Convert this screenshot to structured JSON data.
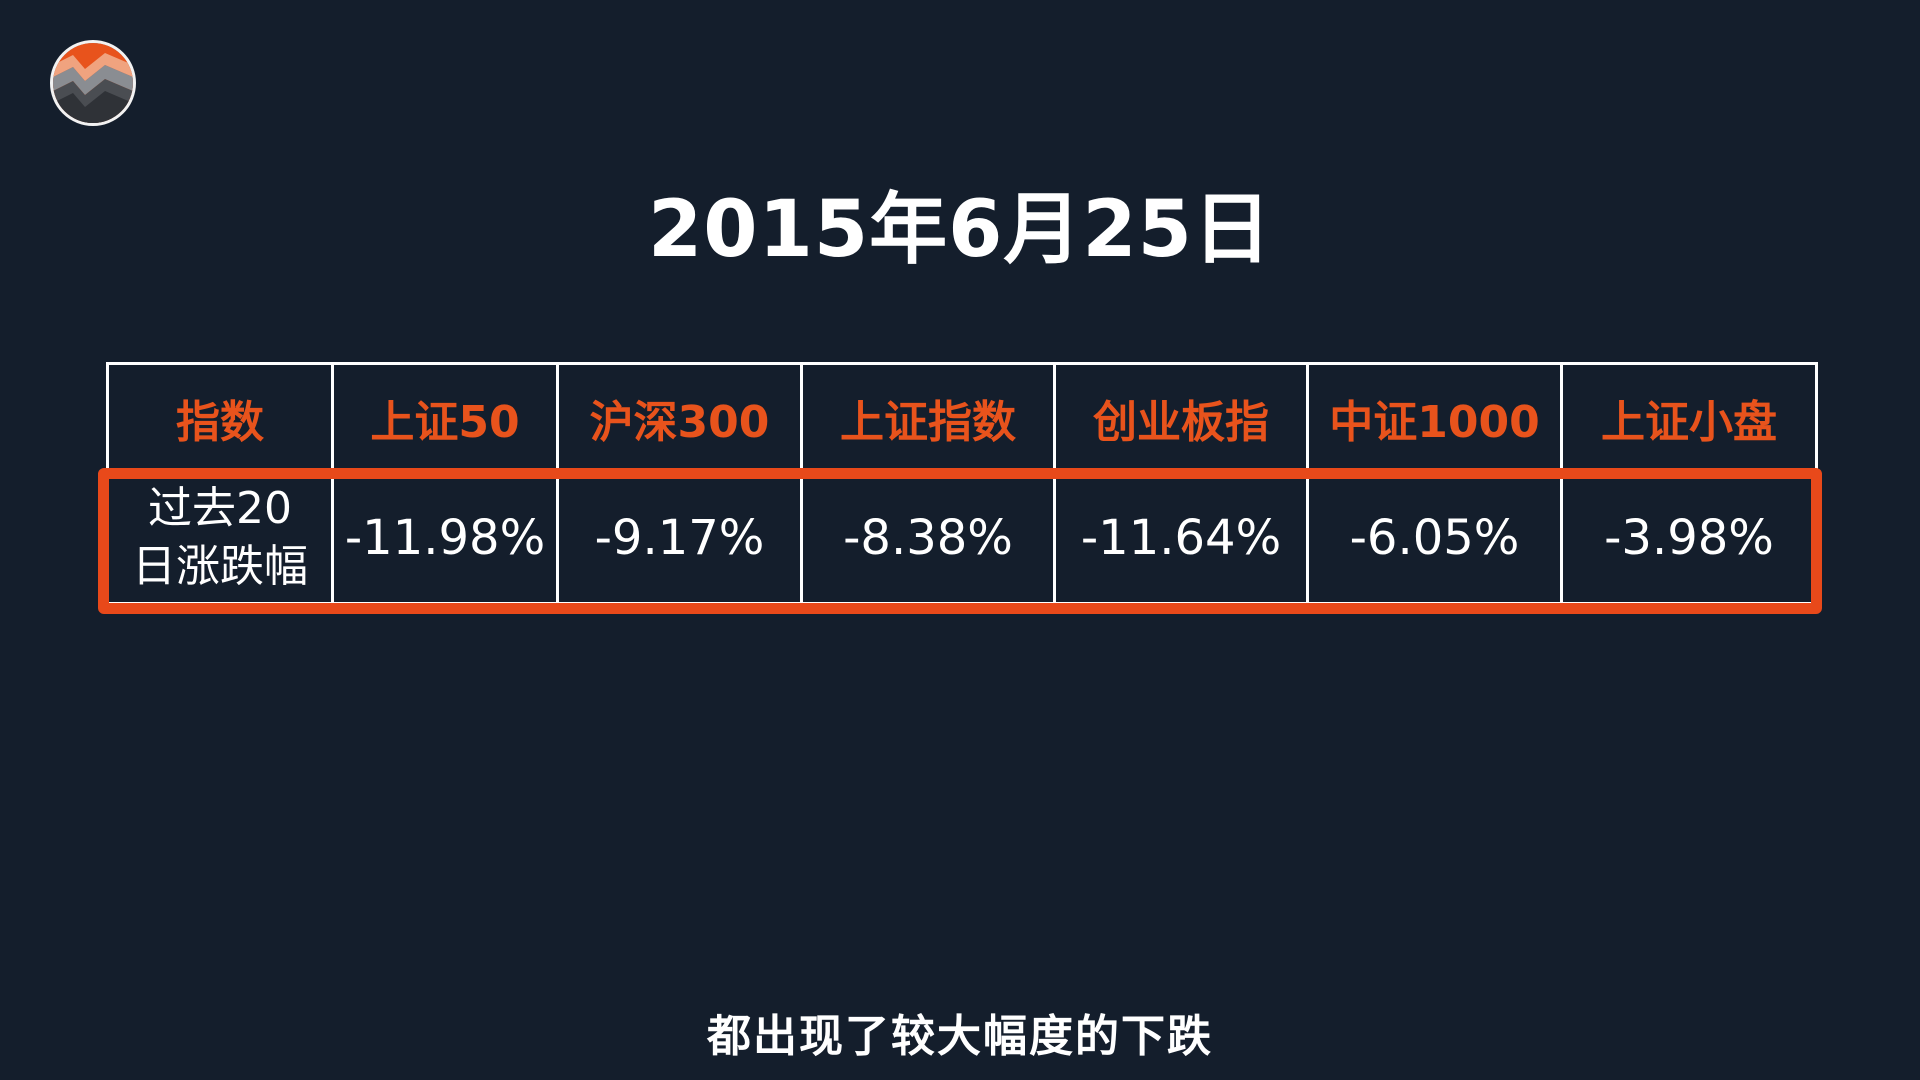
{
  "logo": {
    "icon": "zigzag-chart-logo-icon",
    "colors": [
      "#e8531c",
      "#f0a37f",
      "#6b6e73",
      "#3a3d42"
    ]
  },
  "title": "2015年6月25日",
  "table": {
    "headers": [
      "指数",
      "上证50",
      "沪深300",
      "上证指数",
      "创业板指",
      "中证1000",
      "上证小盘"
    ],
    "row": {
      "label_line1": "过去20",
      "label_line2": "日涨跌幅",
      "values": [
        "-11.98%",
        "-9.17%",
        "-8.38%",
        "-11.64%",
        "-6.05%",
        "-3.98%"
      ]
    }
  },
  "subtitle": "都出现了较大幅度的下跌",
  "colors": {
    "background": "#141e2c",
    "accent": "#e8531c",
    "text": "#ffffff"
  }
}
